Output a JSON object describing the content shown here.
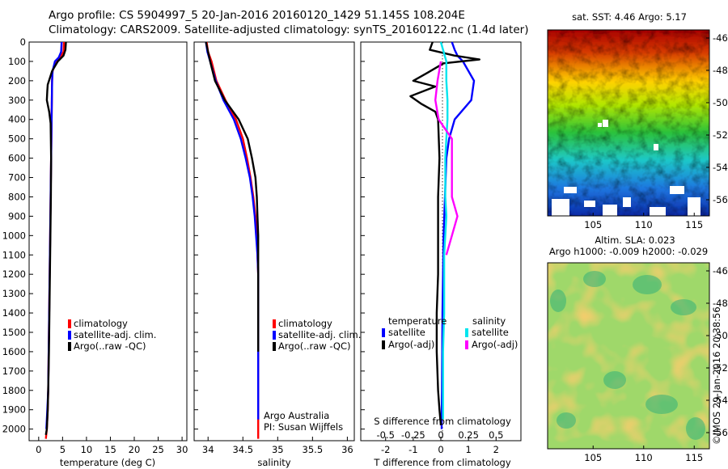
{
  "title_line1": "Argo profile: CS 5904997_5 20-Jan-2016 20160120_1429 51.145S 108.204E",
  "title_line2": "Climatology: CARS2009. Satellite-adjusted climatology: synTS_20160122.nc (1.4d later)",
  "sst_title": "sat. SST: 4.46 Argo: 5.17",
  "sla_title1": "Altim. SLA: 0.023",
  "sla_title2": "Argo h1000: -0.009 h2000: -0.029",
  "credit_top": "Argo Australia",
  "credit_bottom": "PI: Susan Wijffels",
  "watermark": "©IMOS 29-Jan-2016 20:38:56",
  "colors": {
    "climatology": "#ff0000",
    "satellite": "#0000ff",
    "argo": "#000000",
    "sal_satellite": "#00e5ee",
    "sal_argo": "#ff00ff"
  },
  "chart_data": [
    {
      "type": "line",
      "xlabel": "temperature (deg C)",
      "ylabel": "",
      "xlim": [
        -2,
        31
      ],
      "ylim": [
        2060,
        0
      ],
      "xticks": [
        "0",
        "5",
        "10",
        "15",
        "20",
        "25",
        "30"
      ],
      "yticks": [
        "0",
        "100",
        "200",
        "300",
        "400",
        "500",
        "600",
        "700",
        "800",
        "900",
        "1000",
        "1100",
        "1200",
        "1300",
        "1400",
        "1500",
        "1600",
        "1700",
        "1800",
        "1900",
        "2000"
      ],
      "legend": [
        "climatology",
        "satellite-adj. clim.",
        "Argo(..raw -QC)"
      ],
      "series": [
        {
          "name": "climatology",
          "x": [
            5.3,
            5.2,
            4.5,
            3.5,
            2.9,
            2.8,
            2.75,
            2.7,
            2.6,
            2.5,
            2.4,
            2.3,
            2.2,
            2.1,
            2.0,
            1.9,
            1.7,
            1.5
          ],
          "y": [
            0,
            50,
            80,
            100,
            150,
            200,
            300,
            400,
            600,
            800,
            1000,
            1200,
            1400,
            1600,
            1800,
            1900,
            2000,
            2050
          ]
        },
        {
          "name": "satellite-adj. clim.",
          "x": [
            4.8,
            4.7,
            4.2,
            3.4,
            2.9,
            2.8,
            2.75,
            2.7,
            2.6,
            2.5,
            2.4,
            2.3,
            2.2,
            2.1,
            2.0,
            1.8,
            1.6
          ],
          "y": [
            0,
            50,
            80,
            100,
            150,
            200,
            300,
            400,
            600,
            800,
            1000,
            1200,
            1400,
            1600,
            1800,
            1900,
            2000
          ]
        },
        {
          "name": "Argo(..raw -QC)",
          "x": [
            5.7,
            5.6,
            5.2,
            4.0,
            2.8,
            1.9,
            1.8,
            1.7,
            2.2,
            2.5,
            2.6,
            2.55,
            2.45,
            2.35,
            2.25,
            2.15,
            2.0,
            1.9,
            1.7,
            1.5
          ],
          "y": [
            0,
            40,
            70,
            100,
            150,
            220,
            250,
            300,
            360,
            420,
            600,
            800,
            1000,
            1200,
            1400,
            1600,
            1800,
            1900,
            2000,
            2030
          ]
        }
      ]
    },
    {
      "type": "line",
      "xlabel": "salinity",
      "ylabel": "",
      "xlim": [
        33.8,
        36.1
      ],
      "ylim": [
        2060,
        0
      ],
      "xticks": [
        "34",
        "34.5",
        "35",
        "35.5",
        "36"
      ],
      "legend": [
        "climatology",
        "satellite-adj. clim.",
        "Argo(..raw -QC)"
      ],
      "series": [
        {
          "name": "climatology",
          "x": [
            33.98,
            34.0,
            34.05,
            34.12,
            34.25,
            34.4,
            34.5,
            34.56,
            34.61,
            34.65,
            34.68,
            34.7,
            34.71,
            34.72,
            34.72,
            34.72
          ],
          "y": [
            0,
            50,
            100,
            200,
            300,
            400,
            500,
            600,
            700,
            800,
            900,
            1000,
            1100,
            1200,
            1600,
            2050
          ]
        },
        {
          "name": "satellite-adj. clim.",
          "x": [
            33.97,
            33.99,
            34.03,
            34.11,
            34.22,
            34.37,
            34.47,
            34.54,
            34.6,
            34.64,
            34.67,
            34.69,
            34.71,
            34.72,
            34.72,
            34.72
          ],
          "y": [
            0,
            50,
            100,
            200,
            300,
            400,
            500,
            600,
            700,
            800,
            900,
            1000,
            1100,
            1200,
            1600,
            1950
          ]
        },
        {
          "name": "Argo(..raw -QC)",
          "x": [
            33.97,
            34.0,
            34.03,
            34.1,
            34.24,
            34.44,
            34.57,
            34.63,
            34.68,
            34.7,
            34.71,
            34.72,
            34.72,
            34.72,
            34.72
          ],
          "y": [
            0,
            50,
            100,
            200,
            300,
            400,
            500,
            600,
            700,
            800,
            900,
            1000,
            1100,
            1200,
            1600
          ]
        }
      ]
    },
    {
      "type": "line",
      "xlabel": "T difference from climatology",
      "secondary_xlabel": "S difference from climatology",
      "ylabel": "",
      "xlim": [
        -2.9,
        2.9
      ],
      "ylim": [
        2060,
        0
      ],
      "xticks": [
        "-2",
        "-1",
        "0",
        "1",
        "2"
      ],
      "secondary_xticks": [
        "-0.5",
        "-0.25",
        "0",
        "0.25",
        "0.5"
      ],
      "legend_headers": [
        "temperature",
        "salinity"
      ],
      "legend": [
        "satellite",
        "Argo(-adj)",
        "satellite",
        "Argo(-adj)"
      ],
      "series": [
        {
          "name": "satellite",
          "group": "temperature",
          "x": [
            0.4,
            0.5,
            0.6,
            0.8,
            1.2,
            1.1,
            0.5,
            0.3,
            0.2,
            0.15,
            0.1,
            0.08,
            0.06,
            0.05,
            0.04,
            0.03,
            0.03
          ],
          "y": [
            0,
            40,
            70,
            100,
            200,
            300,
            400,
            500,
            600,
            800,
            1000,
            1200,
            1400,
            1600,
            1800,
            1950,
            2000
          ]
        },
        {
          "name": "Argo(-adj)",
          "group": "temperature",
          "x": [
            -0.3,
            -0.4,
            0.5,
            1.4,
            0.1,
            -0.5,
            -1.0,
            -0.2,
            -1.1,
            -0.7,
            -0.2,
            -0.1,
            -0.05,
            -0.1,
            -0.1,
            -0.1,
            -0.15,
            -0.15,
            -0.1,
            -0.05,
            0.0
          ],
          "y": [
            0,
            40,
            70,
            90,
            110,
            160,
            200,
            230,
            280,
            320,
            360,
            400,
            600,
            800,
            1000,
            1200,
            1400,
            1600,
            1800,
            1900,
            1980
          ]
        },
        {
          "name": "satellite",
          "group": "salinity",
          "x": [
            0.0,
            0.05,
            0.05,
            0.06,
            0.06,
            0.05,
            0.04,
            0.04,
            0.04,
            0.05,
            0.04,
            0.03,
            0.03,
            0.03,
            0.02,
            0.02
          ],
          "y": [
            0,
            100,
            200,
            300,
            400,
            500,
            600,
            700,
            800,
            900,
            1000,
            1100,
            1200,
            1400,
            1600,
            1950
          ]
        },
        {
          "name": "Argo(-adj)",
          "group": "salinity",
          "x": [
            0.0,
            -0.03,
            -0.05,
            -0.02,
            0.1,
            0.1,
            0.1,
            0.1,
            0.15,
            0.1,
            0.05
          ],
          "y": [
            100,
            200,
            300,
            400,
            500,
            600,
            700,
            800,
            900,
            1000,
            1100
          ]
        }
      ]
    },
    {
      "type": "heatmap",
      "title": "sat. SST: 4.46 Argo: 5.17",
      "xlim": [
        100.5,
        116.5
      ],
      "ylim": [
        -57,
        -45.5
      ],
      "xticks": [
        "105",
        "110",
        "115"
      ],
      "yticks": [
        "-46",
        "-48",
        "-50",
        "-52",
        "-54",
        "-56"
      ]
    },
    {
      "type": "heatmap",
      "title": "Altim. SLA: 0.023",
      "xlim": [
        100.5,
        116.5
      ],
      "ylim": [
        -57,
        -45.5
      ],
      "xticks": [
        "105",
        "110",
        "115"
      ],
      "yticks": [
        "-46",
        "-48",
        "-50",
        "-52",
        "-54",
        "-56"
      ]
    }
  ]
}
